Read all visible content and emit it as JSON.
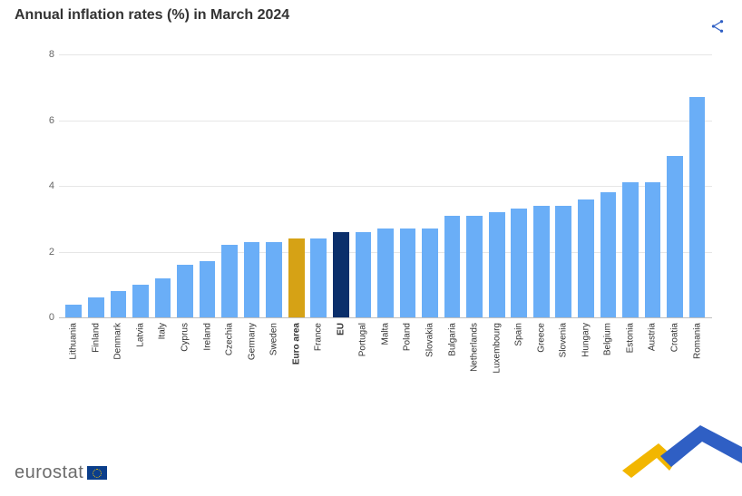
{
  "title": "Annual inflation rates (%) in March 2024",
  "chart": {
    "type": "bar",
    "default_bar_color": "#6aaef7",
    "background_color": "#ffffff",
    "grid_color": "#e6e6e6",
    "axis_color": "#bfbfbf",
    "label_color": "#333333",
    "ylim": [
      0,
      8
    ],
    "yticks": [
      0,
      2,
      4,
      6,
      8
    ],
    "ytick_fontsize": 11,
    "xlabel_fontsize": 10,
    "title_fontsize": 16,
    "bar_width": 0.72,
    "items": [
      {
        "label": "Lithuania",
        "value": 0.4
      },
      {
        "label": "Finland",
        "value": 0.6
      },
      {
        "label": "Denmark",
        "value": 0.8
      },
      {
        "label": "Latvia",
        "value": 1.0
      },
      {
        "label": "Italy",
        "value": 1.2
      },
      {
        "label": "Cyprus",
        "value": 1.6
      },
      {
        "label": "Ireland",
        "value": 1.7
      },
      {
        "label": "Czechia",
        "value": 2.2
      },
      {
        "label": "Germany",
        "value": 2.3
      },
      {
        "label": "Sweden",
        "value": 2.3
      },
      {
        "label": "Euro area",
        "value": 2.4,
        "color": "#d6a215",
        "bold": true
      },
      {
        "label": "France",
        "value": 2.4
      },
      {
        "label": "EU",
        "value": 2.6,
        "color": "#0b2f6b",
        "bold": true
      },
      {
        "label": "Portugal",
        "value": 2.6
      },
      {
        "label": "Malta",
        "value": 2.7
      },
      {
        "label": "Poland",
        "value": 2.7
      },
      {
        "label": "Slovakia",
        "value": 2.7
      },
      {
        "label": "Bulgaria",
        "value": 3.1
      },
      {
        "label": "Netherlands",
        "value": 3.1
      },
      {
        "label": "Luxembourg",
        "value": 3.2
      },
      {
        "label": "Spain",
        "value": 3.3
      },
      {
        "label": "Greece",
        "value": 3.4
      },
      {
        "label": "Slovenia",
        "value": 3.4
      },
      {
        "label": "Hungary",
        "value": 3.6
      },
      {
        "label": "Belgium",
        "value": 3.8
      },
      {
        "label": "Estonia",
        "value": 4.1
      },
      {
        "label": "Austria",
        "value": 4.1
      },
      {
        "label": "Croatia",
        "value": 4.9
      },
      {
        "label": "Romania",
        "value": 6.7
      }
    ]
  },
  "branding": {
    "word": "eurostat",
    "swoosh_yellow": "#f2b600",
    "swoosh_blue": "#2f5fc4",
    "flag_bg": "#0b3e8b"
  },
  "icons": {
    "share_color": "#2f5fc4"
  }
}
